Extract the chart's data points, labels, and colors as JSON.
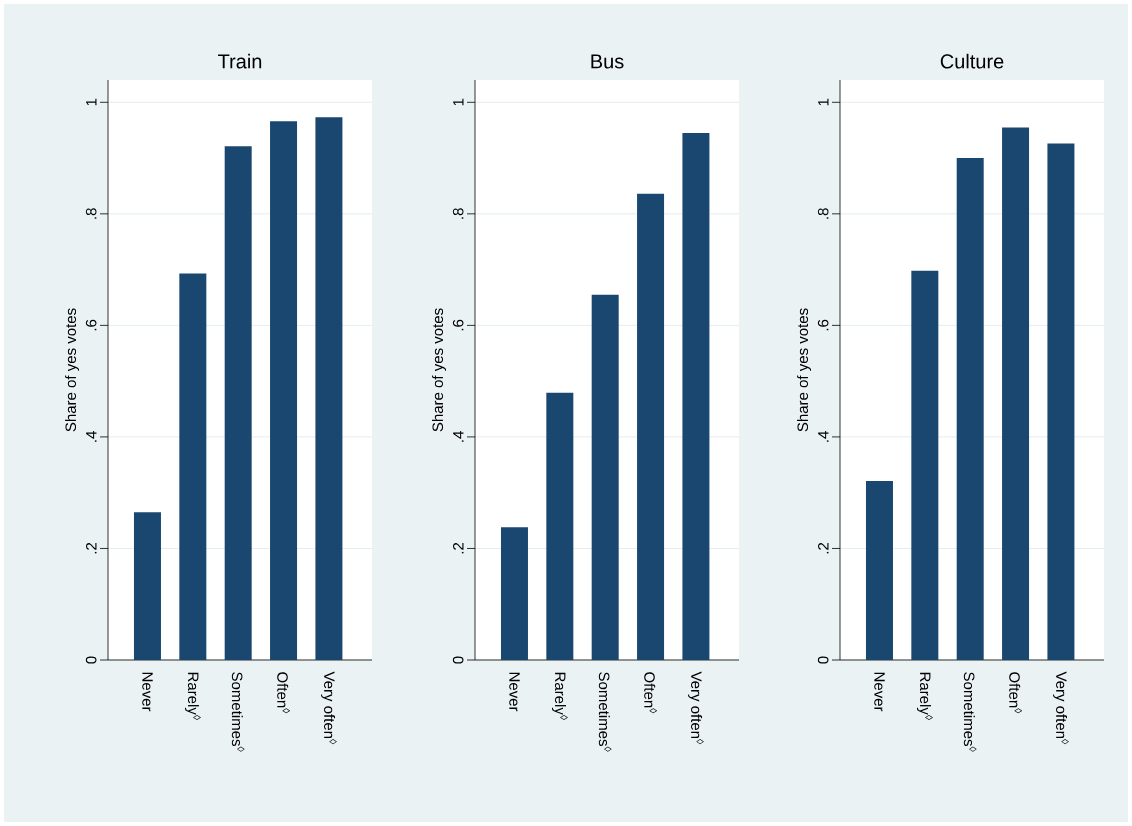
{
  "chart_data": [
    {
      "type": "bar",
      "title": "Train",
      "ylabel": "Share of yes votes",
      "categories": [
        "Never",
        "Rarely$^{◊}$",
        "Sometimes$^{◊}$",
        "Often$^{◊}$",
        "Very often$^{◊}$"
      ],
      "values": [
        0.265,
        0.693,
        0.921,
        0.966,
        0.973
      ],
      "color": "#1a476f",
      "ylim": [
        0,
        1.04
      ],
      "yticks": [
        0,
        {
          "value": 0.2,
          "label": ".2"
        },
        {
          "value": 0.4,
          "label": ".4"
        },
        {
          "value": 0.6,
          "label": ".6"
        },
        {
          "value": 0.8,
          "label": ".8"
        },
        1
      ],
      "grid": "y"
    },
    {
      "type": "bar",
      "title": "Bus",
      "ylabel": "Share of yes votes",
      "categories": [
        "Never",
        "Rarely$^{◊}$",
        "Sometimes$^{◊}$",
        "Often$^{◊}$",
        "Very often$^{◊}$"
      ],
      "values": [
        0.238,
        0.479,
        0.655,
        0.836,
        0.945
      ],
      "color": "#1a476f",
      "ylim": [
        0,
        1.04
      ],
      "yticks": [
        0,
        {
          "value": 0.2,
          "label": ".2"
        },
        {
          "value": 0.4,
          "label": ".4"
        },
        {
          "value": 0.6,
          "label": ".6"
        },
        {
          "value": 0.8,
          "label": ".8"
        },
        1
      ],
      "grid": "y"
    },
    {
      "type": "bar",
      "title": "Culture",
      "ylabel": "Share of yes votes",
      "categories": [
        "Never",
        "Rarely$^{◊}$",
        "Sometimes$^{◊}$",
        "Often$^{◊}$",
        "Very often$^{◊}$"
      ],
      "values": [
        0.321,
        0.698,
        0.9,
        0.955,
        0.926
      ],
      "color": "#1a476f",
      "ylim": [
        0,
        1.04
      ],
      "yticks": [
        0,
        {
          "value": 0.2,
          "label": ".2"
        },
        {
          "value": 0.4,
          "label": ".4"
        },
        {
          "value": 0.6,
          "label": ".6"
        },
        {
          "value": 0.8,
          "label": ".8"
        },
        1
      ],
      "grid": "y"
    }
  ]
}
